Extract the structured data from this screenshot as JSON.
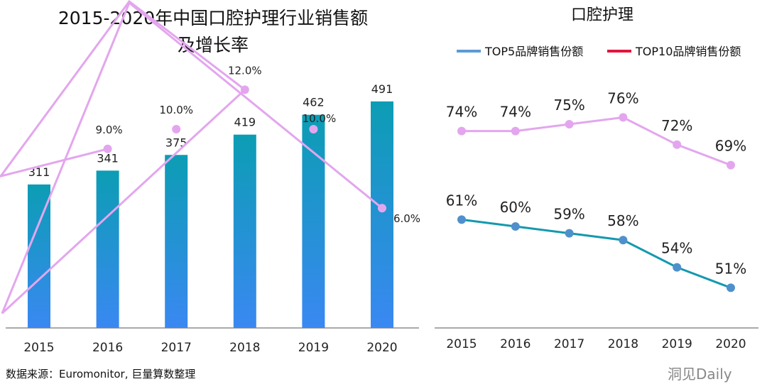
{
  "chart_data": [
    {
      "type": "bar",
      "title": "2015-2020年中国口腔护理行业销售额",
      "subtitle": "及增长率",
      "categories": [
        "2015",
        "2016",
        "2017",
        "2018",
        "2019",
        "2020"
      ],
      "series": [
        {
          "name": "销售额",
          "type": "bar",
          "values": [
            311,
            341,
            375,
            419,
            462,
            491
          ],
          "labels": [
            "311",
            "341",
            "375",
            "419",
            "462",
            "491"
          ]
        },
        {
          "name": "增长率",
          "type": "line",
          "values": [
            null,
            9.0,
            10.0,
            12.0,
            10.0,
            6.0
          ],
          "labels": [
            "",
            "9.0%",
            "10.0%",
            "12.0%",
            "10.0%",
            "6.0%"
          ]
        }
      ],
      "colors": {
        "bar_top": "#0c9db4",
        "bar_bottom": "#3a88f2",
        "line": "#e3a6ee"
      },
      "grid": false
    },
    {
      "type": "line",
      "title": "口腔护理",
      "categories": [
        "2015",
        "2016",
        "2017",
        "2018",
        "2019",
        "2020"
      ],
      "legend_position": "top",
      "series": [
        {
          "name": "TOP5品牌销售份额",
          "values": [
            61,
            60,
            59,
            58,
            54,
            51
          ],
          "labels": [
            "61%",
            "60%",
            "59%",
            "58%",
            "54%",
            "51%"
          ],
          "legend_color": "#5b9bd5",
          "color": "#1499ae"
        },
        {
          "name": "TOP10品牌销售份额",
          "values": [
            74,
            74,
            75,
            76,
            72,
            69
          ],
          "labels": [
            "74%",
            "74%",
            "75%",
            "76%",
            "72%",
            "69%"
          ],
          "legend_color": "#e0153f",
          "color": "#e3a6ee"
        }
      ],
      "grid": false
    }
  ],
  "source": "数据来源：Euromonitor, 巨量算数整理",
  "watermark": "洞见Daily"
}
